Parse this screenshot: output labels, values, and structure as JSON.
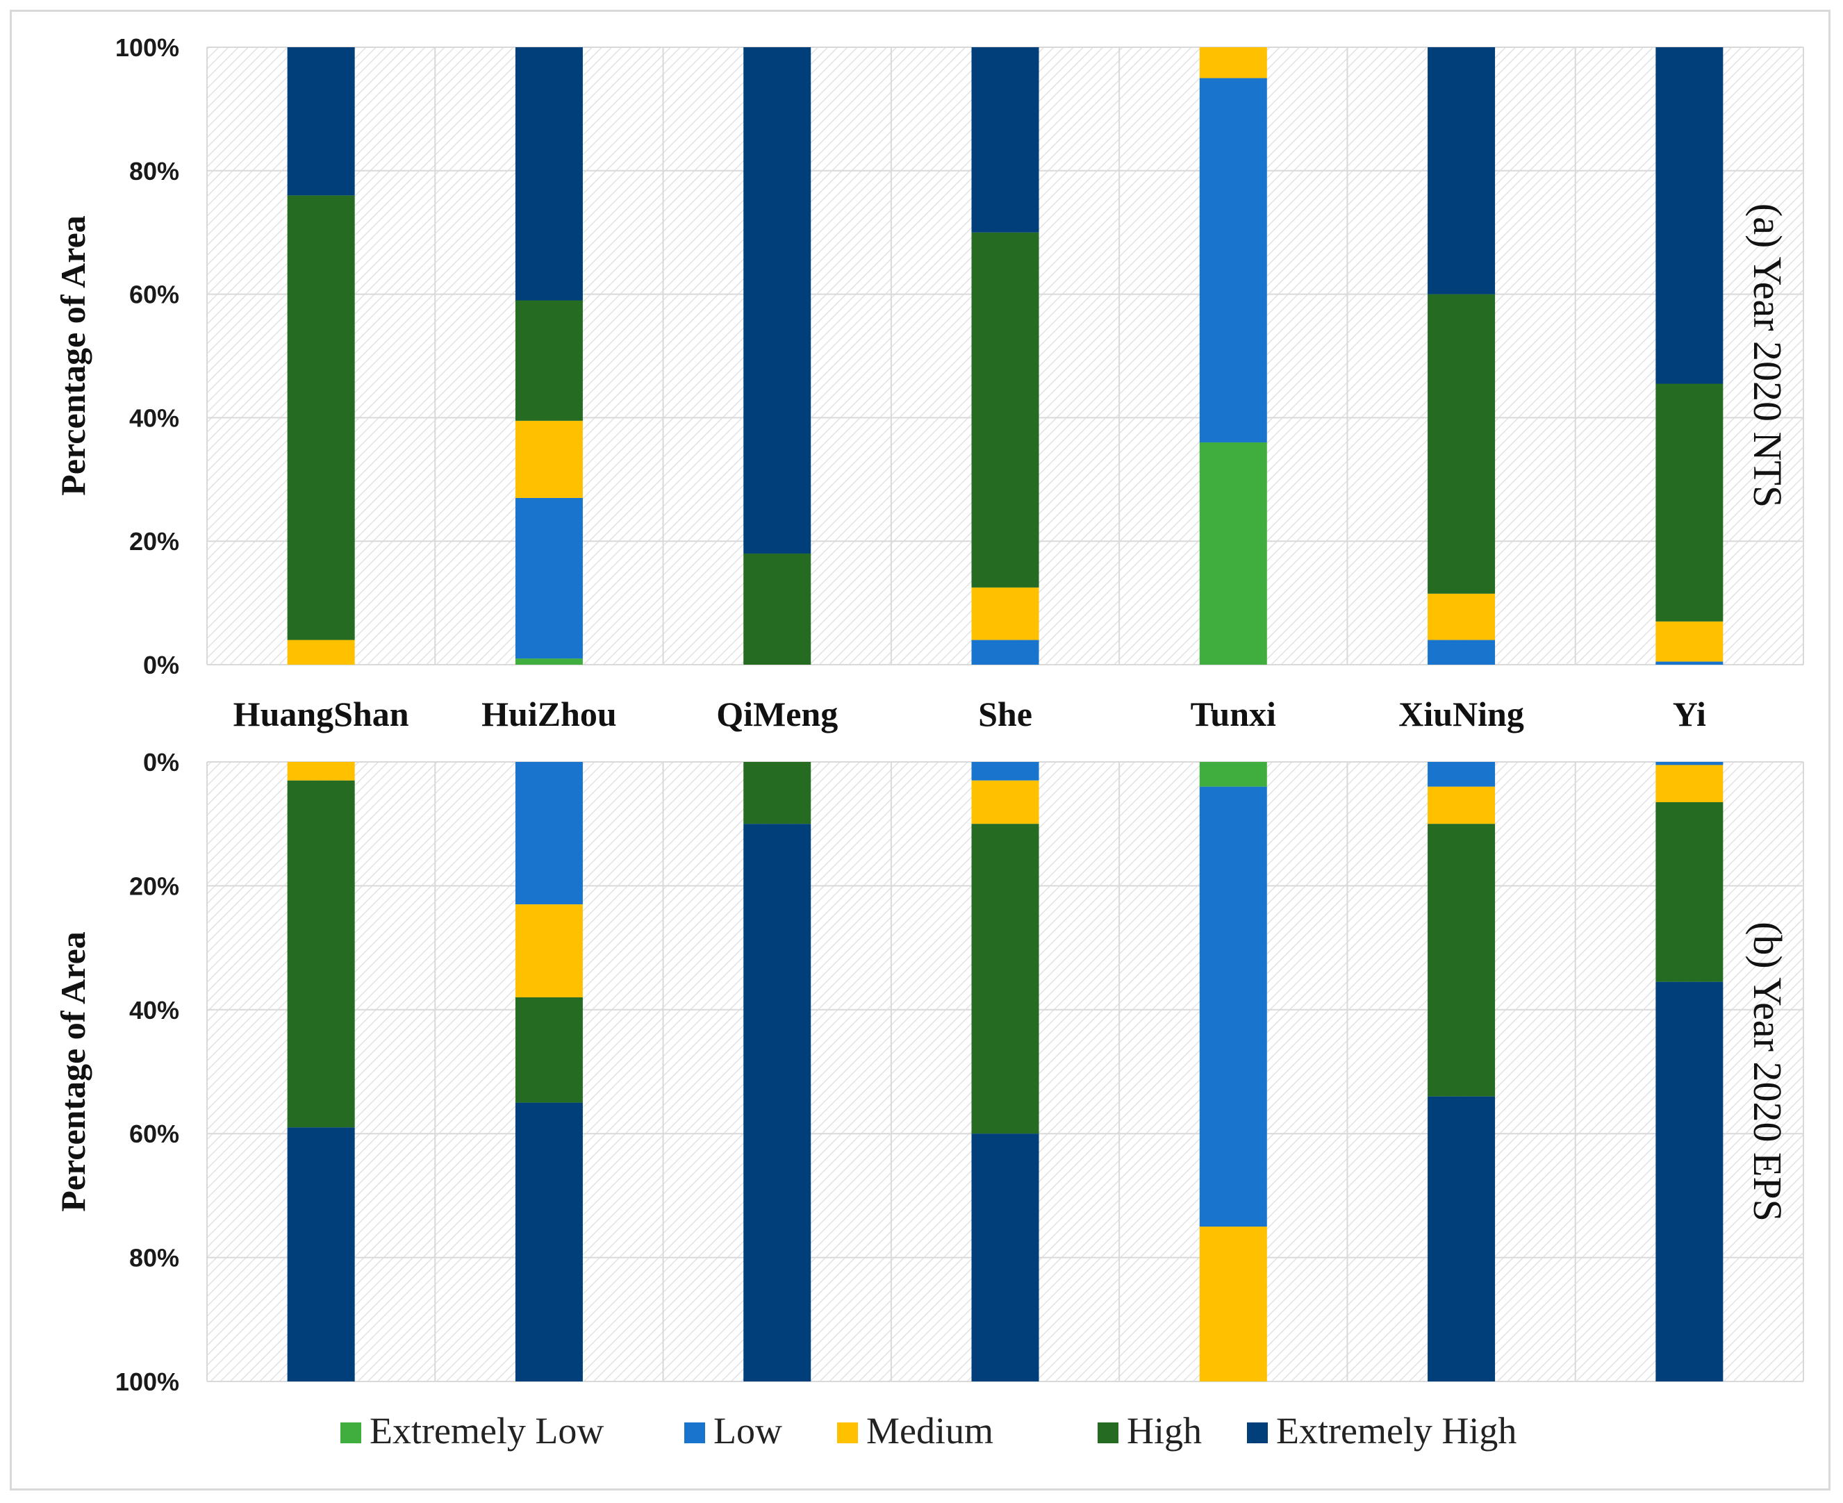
{
  "chart_data": {
    "type": "bar",
    "stacked": true,
    "categories": [
      "HuangShan",
      "HuiZhou",
      "QiMeng",
      "She",
      "Tunxi",
      "XiuNing",
      "Yi"
    ],
    "legend": [
      "Extremely Low",
      "Low",
      "Medium",
      "High",
      "Extremely High"
    ],
    "colors": {
      "Extremely Low": "#3fae3f",
      "Low": "#1874cd",
      "Medium": "#ffc000",
      "High": "#256b21",
      "Extremely High": "#003f7a"
    },
    "y_ticks_top": [
      "0%",
      "20%",
      "40%",
      "60%",
      "80%",
      "100%"
    ],
    "y_ticks_bottom": [
      "0%",
      "20%",
      "40%",
      "60%",
      "80%",
      "100%"
    ],
    "ylabel": "Percentage of Area",
    "panels": [
      {
        "label": "(a) Year 2020 NTS",
        "direction": "up",
        "ylim": [
          0,
          100
        ],
        "series": [
          {
            "name": "Extremely Low",
            "values": [
              0,
              1,
              0,
              0,
              36,
              0,
              0
            ]
          },
          {
            "name": "Low",
            "values": [
              0,
              26,
              0,
              4,
              59,
              4,
              0.5
            ]
          },
          {
            "name": "Medium",
            "values": [
              4,
              12.5,
              0,
              8.5,
              5,
              7.5,
              6.5
            ]
          },
          {
            "name": "High",
            "values": [
              72,
              19.5,
              18,
              57.5,
              0,
              48.5,
              38.5
            ]
          },
          {
            "name": "Extremely High",
            "values": [
              24,
              41,
              82,
              30,
              0,
              40,
              54.5
            ]
          }
        ]
      },
      {
        "label": "(b) Year 2020 EPS",
        "direction": "down",
        "ylim": [
          0,
          100
        ],
        "series": [
          {
            "name": "Extremely Low",
            "values": [
              0,
              0,
              0,
              0,
              4,
              0,
              0
            ]
          },
          {
            "name": "Low",
            "values": [
              0,
              23,
              0,
              3,
              71,
              4,
              0.5
            ]
          },
          {
            "name": "Medium",
            "values": [
              3,
              15,
              0,
              7,
              25,
              6,
              6
            ]
          },
          {
            "name": "High",
            "values": [
              56,
              17,
              10,
              50,
              0,
              44,
              29
            ]
          },
          {
            "name": "Extremely High",
            "values": [
              41,
              45,
              90,
              40,
              0,
              46,
              64.5
            ]
          }
        ]
      }
    ]
  }
}
